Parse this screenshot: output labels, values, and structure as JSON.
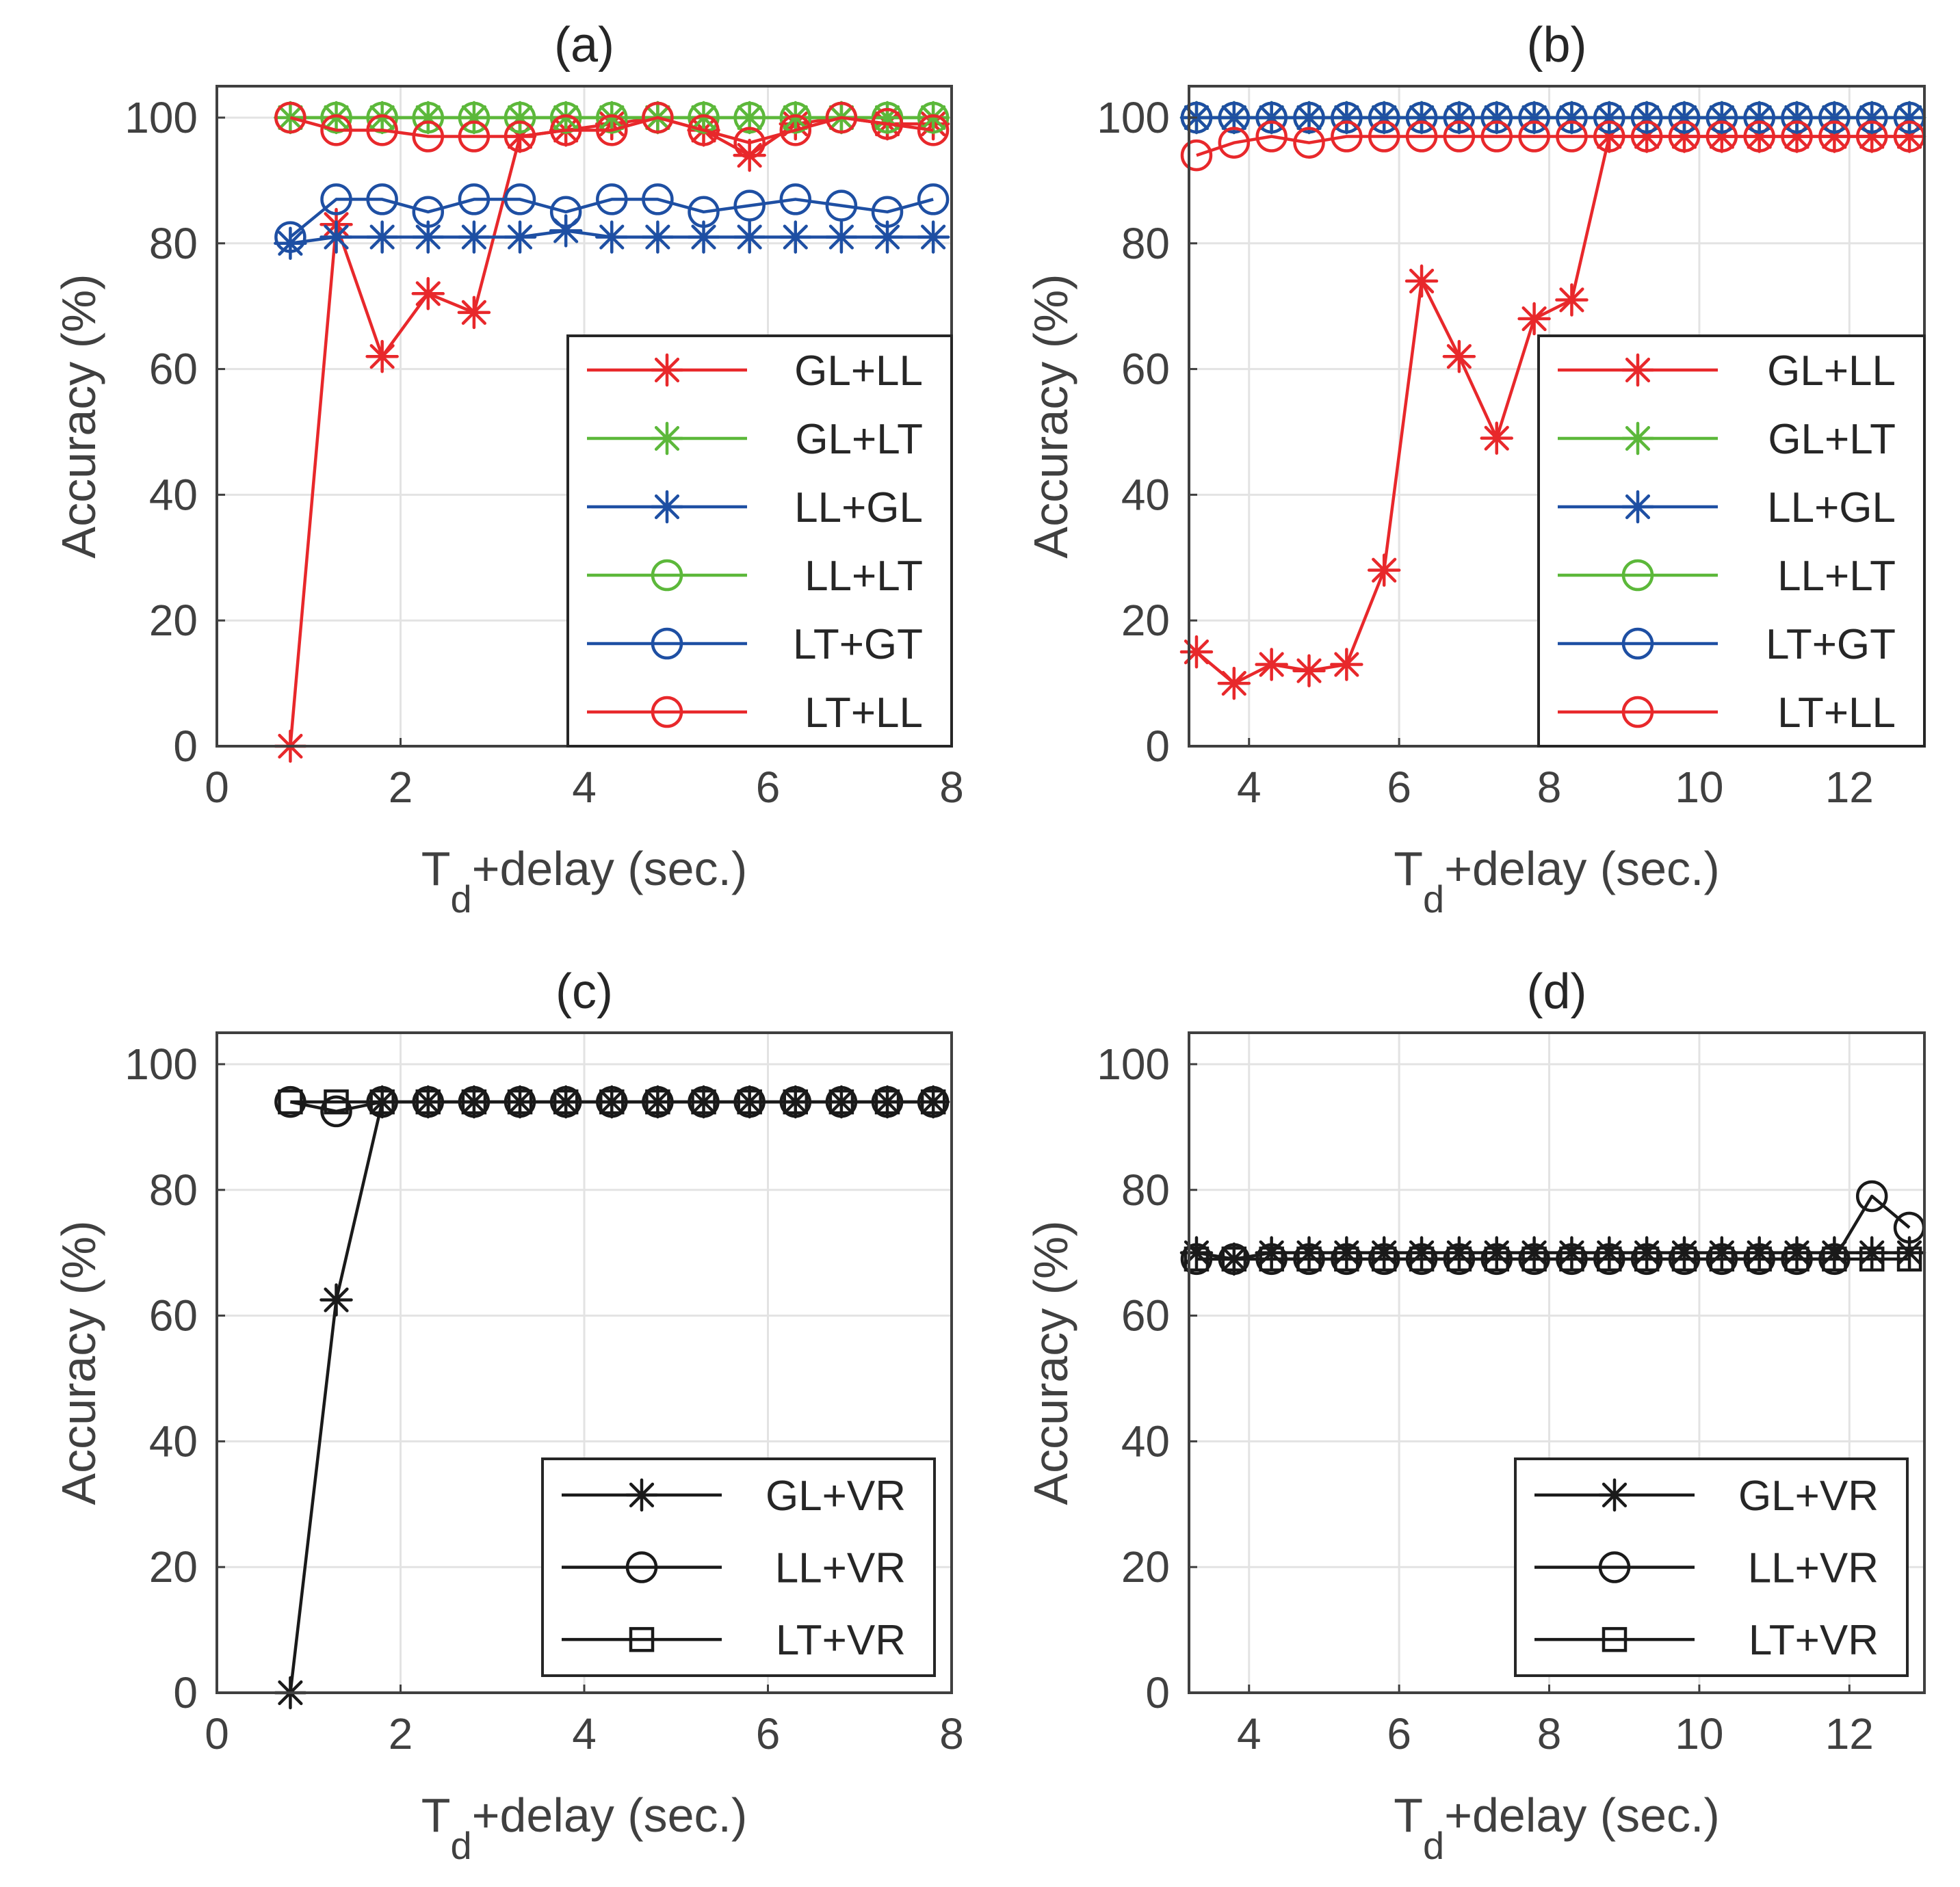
{
  "colors": {
    "red": "#e8282b",
    "green": "#5cb83a",
    "blue": "#1e4fa3",
    "black": "#1a1a1a"
  },
  "chart_data": [
    {
      "type": "line",
      "title": "(a)",
      "ylabel": "Accuracy (%)",
      "xlabel_main": "T",
      "xlabel_sub": "d",
      "xlabel_rest": "+delay (sec.)",
      "xlim": [
        0,
        8
      ],
      "ylim": [
        0,
        105
      ],
      "xticks": [
        0,
        2,
        4,
        6,
        8
      ],
      "yticks": [
        0,
        20,
        40,
        60,
        80,
        100
      ],
      "legend_position": "bottom-right",
      "x": [
        0.8,
        1.3,
        1.8,
        2.3,
        2.8,
        3.3,
        3.8,
        4.3,
        4.8,
        5.3,
        5.8,
        6.3,
        6.8,
        7.3,
        7.8
      ],
      "series": [
        {
          "name": "GL+LL",
          "color": "red",
          "marker": "star",
          "values": [
            0,
            83,
            62,
            72,
            69,
            97,
            98,
            99,
            100,
            98,
            94,
            99,
            100,
            99,
            99
          ]
        },
        {
          "name": "GL+LT",
          "color": "green",
          "marker": "star",
          "values": [
            100,
            100,
            100,
            100,
            100,
            100,
            100,
            100,
            100,
            100,
            100,
            100,
            100,
            100,
            100
          ]
        },
        {
          "name": "LL+GL",
          "color": "blue",
          "marker": "star",
          "values": [
            80,
            81,
            81,
            81,
            81,
            81,
            82,
            81,
            81,
            81,
            81,
            81,
            81,
            81,
            81
          ]
        },
        {
          "name": "LL+LT",
          "color": "green",
          "marker": "circle",
          "values": [
            100,
            100,
            100,
            100,
            100,
            100,
            100,
            100,
            100,
            100,
            100,
            100,
            100,
            100,
            100
          ]
        },
        {
          "name": "LT+GT",
          "color": "blue",
          "marker": "circle",
          "values": [
            81,
            87,
            87,
            85,
            87,
            87,
            85,
            87,
            87,
            85,
            86,
            87,
            86,
            85,
            87
          ]
        },
        {
          "name": "LT+LL",
          "color": "red",
          "marker": "circle",
          "values": [
            100,
            98,
            98,
            97,
            97,
            97,
            98,
            98,
            100,
            98,
            96,
            98,
            100,
            99,
            98
          ]
        }
      ]
    },
    {
      "type": "line",
      "title": "(b)",
      "ylabel": "Accuracy (%)",
      "xlabel_main": "T",
      "xlabel_sub": "d",
      "xlabel_rest": "+delay (sec.)",
      "xlim": [
        3.2,
        13
      ],
      "ylim": [
        0,
        105
      ],
      "xticks": [
        4,
        6,
        8,
        10,
        12
      ],
      "yticks": [
        0,
        20,
        40,
        60,
        80,
        100
      ],
      "legend_position": "bottom-right",
      "x": [
        3.3,
        3.8,
        4.3,
        4.8,
        5.3,
        5.8,
        6.3,
        6.8,
        7.3,
        7.8,
        8.3,
        8.8,
        9.3,
        9.8,
        10.3,
        10.8,
        11.3,
        11.8,
        12.3,
        12.8
      ],
      "series": [
        {
          "name": "GL+LL",
          "color": "red",
          "marker": "star",
          "values": [
            15,
            10,
            13,
            12,
            13,
            28,
            74,
            62,
            49,
            68,
            71,
            97,
            97,
            97,
            97,
            97,
            97,
            97,
            97,
            97
          ]
        },
        {
          "name": "GL+LT",
          "color": "green",
          "marker": "star",
          "values": [
            100,
            100,
            100,
            100,
            100,
            100,
            100,
            100,
            100,
            100,
            100,
            100,
            100,
            100,
            100,
            100,
            100,
            100,
            100,
            100
          ]
        },
        {
          "name": "LL+GL",
          "color": "blue",
          "marker": "star",
          "values": [
            100,
            100,
            100,
            100,
            100,
            100,
            100,
            100,
            100,
            100,
            100,
            100,
            100,
            100,
            100,
            100,
            100,
            100,
            100,
            100
          ]
        },
        {
          "name": "LL+LT",
          "color": "green",
          "marker": "circle",
          "values": [
            100,
            100,
            100,
            100,
            100,
            100,
            100,
            100,
            100,
            100,
            100,
            100,
            100,
            100,
            100,
            100,
            100,
            100,
            100,
            100
          ]
        },
        {
          "name": "LT+GT",
          "color": "blue",
          "marker": "circle",
          "values": [
            100,
            100,
            100,
            100,
            100,
            100,
            100,
            100,
            100,
            100,
            100,
            100,
            100,
            100,
            100,
            100,
            100,
            100,
            100,
            100
          ]
        },
        {
          "name": "LT+LL",
          "color": "red",
          "marker": "circle",
          "values": [
            94,
            96,
            97,
            96,
            97,
            97,
            97,
            97,
            97,
            97,
            97,
            97,
            97,
            97,
            97,
            97,
            97,
            97,
            97,
            97
          ]
        }
      ]
    },
    {
      "type": "line",
      "title": "(c)",
      "ylabel": "Accuracy (%)",
      "xlabel_main": "T",
      "xlabel_sub": "d",
      "xlabel_rest": "+delay (sec.)",
      "xlim": [
        0,
        8
      ],
      "ylim": [
        0,
        105
      ],
      "xticks": [
        0,
        2,
        4,
        6,
        8
      ],
      "yticks": [
        0,
        20,
        40,
        60,
        80,
        100
      ],
      "legend_position": "bottom-right",
      "x": [
        0.8,
        1.3,
        1.8,
        2.3,
        2.8,
        3.3,
        3.8,
        4.3,
        4.8,
        5.3,
        5.8,
        6.3,
        6.8,
        7.3,
        7.8
      ],
      "series": [
        {
          "name": "GL+VR",
          "color": "black",
          "marker": "star",
          "values": [
            0,
            62.5,
            94,
            94,
            94,
            94,
            94,
            94,
            94,
            94,
            94,
            94,
            94,
            94,
            94
          ]
        },
        {
          "name": "LL+VR",
          "color": "black",
          "marker": "circle",
          "values": [
            94,
            92.5,
            94,
            94,
            94,
            94,
            94,
            94,
            94,
            94,
            94,
            94,
            94,
            94,
            94
          ]
        },
        {
          "name": "LT+VR",
          "color": "black",
          "marker": "square",
          "values": [
            94,
            94,
            94,
            94,
            94,
            94,
            94,
            94,
            94,
            94,
            94,
            94,
            94,
            94,
            94
          ]
        }
      ]
    },
    {
      "type": "line",
      "title": "(d)",
      "ylabel": "Accuracy (%)",
      "xlabel_main": "T",
      "xlabel_sub": "d",
      "xlabel_rest": "+delay (sec.)",
      "xlim": [
        3.2,
        13
      ],
      "ylim": [
        0,
        105
      ],
      "xticks": [
        4,
        6,
        8,
        10,
        12
      ],
      "yticks": [
        0,
        20,
        40,
        60,
        80,
        100
      ],
      "legend_position": "bottom-right",
      "x": [
        3.3,
        3.8,
        4.3,
        4.8,
        5.3,
        5.8,
        6.3,
        6.8,
        7.3,
        7.8,
        8.3,
        8.8,
        9.3,
        9.8,
        10.3,
        10.8,
        11.3,
        11.8,
        12.3,
        12.8
      ],
      "series": [
        {
          "name": "GL+VR",
          "color": "black",
          "marker": "star",
          "values": [
            70,
            69,
            70,
            70,
            70,
            70,
            70,
            70,
            70,
            70,
            70,
            70,
            70,
            70,
            70,
            70,
            70,
            70,
            70,
            70
          ]
        },
        {
          "name": "LL+VR",
          "color": "black",
          "marker": "circle",
          "values": [
            69,
            69,
            69,
            69,
            69,
            69,
            69,
            69,
            69,
            69,
            69,
            69,
            69,
            69,
            69,
            69,
            69,
            69,
            79,
            74
          ]
        },
        {
          "name": "LT+VR",
          "color": "black",
          "marker": "square",
          "values": [
            69,
            69,
            69,
            69,
            69,
            69,
            69,
            69,
            69,
            69,
            69,
            69,
            69,
            69,
            69,
            69,
            69,
            69,
            69,
            69
          ]
        }
      ]
    }
  ]
}
